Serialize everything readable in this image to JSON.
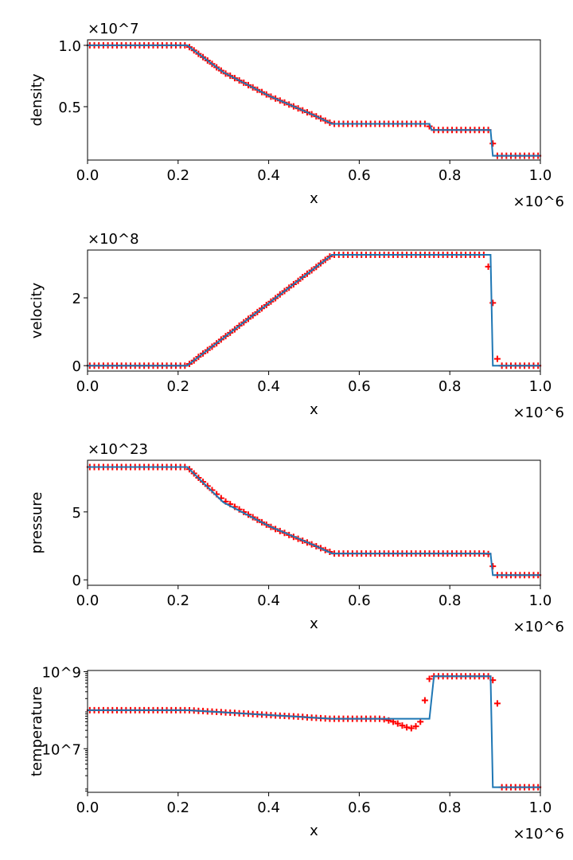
{
  "chart_data": [
    {
      "type": "line+scatter",
      "ylabel": "density",
      "xlabel": "x",
      "x_offset_label": "×10^6",
      "y_offset_label": "×10^7",
      "xlim": [
        0,
        1.0
      ],
      "ylim": [
        0.065,
        1.045
      ],
      "xticks": [
        "0.0",
        "0.2",
        "0.4",
        "0.6",
        "0.8",
        "1.0"
      ],
      "yticks": [
        0.5,
        1.0
      ],
      "ytick_labels": [
        "0.5",
        "1.0"
      ],
      "line": {
        "color": "#1f77b4",
        "x": [
          0,
          0.22,
          0.3,
          0.4,
          0.5,
          0.54,
          0.755,
          0.76,
          0.89,
          0.895,
          1.0
        ],
        "y": [
          1.0,
          1.0,
          0.78,
          0.59,
          0.43,
          0.36,
          0.36,
          0.31,
          0.31,
          0.1,
          0.1
        ]
      },
      "markers": {
        "color": "#ff0000",
        "symbol": "+",
        "y": [
          1.0,
          1.0,
          1.0,
          1.0,
          1.0,
          1.0,
          1.0,
          1.0,
          1.0,
          1.0,
          1.0,
          1.0,
          1.0,
          1.0,
          1.0,
          1.0,
          1.0,
          1.0,
          1.0,
          1.0,
          1.0,
          1.0,
          0.986,
          0.959,
          0.931,
          0.904,
          0.876,
          0.849,
          0.821,
          0.794,
          0.77,
          0.752,
          0.733,
          0.714,
          0.695,
          0.676,
          0.657,
          0.638,
          0.619,
          0.6,
          0.582,
          0.566,
          0.55,
          0.534,
          0.518,
          0.502,
          0.486,
          0.47,
          0.454,
          0.438,
          0.421,
          0.404,
          0.386,
          0.369,
          0.36,
          0.36,
          0.36,
          0.36,
          0.36,
          0.36,
          0.36,
          0.36,
          0.36,
          0.36,
          0.36,
          0.36,
          0.36,
          0.36,
          0.36,
          0.36,
          0.36,
          0.36,
          0.36,
          0.36,
          0.36,
          0.34,
          0.31,
          0.31,
          0.31,
          0.31,
          0.31,
          0.31,
          0.31,
          0.31,
          0.31,
          0.31,
          0.31,
          0.31,
          0.31,
          0.2,
          0.1,
          0.1,
          0.1,
          0.1,
          0.1,
          0.1,
          0.1,
          0.1,
          0.1,
          0.1
        ]
      }
    },
    {
      "type": "line+scatter",
      "ylabel": "velocity",
      "xlabel": "x",
      "x_offset_label": "×10^6",
      "y_offset_label": "×10^8",
      "xlim": [
        0,
        1.0
      ],
      "ylim": [
        -0.16,
        3.41
      ],
      "xticks": [
        "0.0",
        "0.2",
        "0.4",
        "0.6",
        "0.8",
        "1.0"
      ],
      "yticks": [
        0,
        2
      ],
      "ytick_labels": [
        "0",
        "2"
      ],
      "line": {
        "color": "#1f77b4",
        "x": [
          0,
          0.22,
          0.54,
          0.89,
          0.895,
          1.0
        ],
        "y": [
          0,
          0,
          3.27,
          3.27,
          0,
          0
        ]
      },
      "markers": {
        "color": "#ff0000",
        "symbol": "+",
        "y": [
          0,
          0,
          0,
          0,
          0,
          0,
          0,
          0,
          0,
          0,
          0,
          0,
          0,
          0,
          0,
          0,
          0,
          0,
          0,
          0,
          0,
          0,
          0.05,
          0.15,
          0.26,
          0.36,
          0.46,
          0.56,
          0.66,
          0.77,
          0.87,
          0.97,
          1.07,
          1.18,
          1.28,
          1.38,
          1.48,
          1.58,
          1.69,
          1.79,
          1.89,
          1.99,
          2.1,
          2.2,
          2.3,
          2.4,
          2.5,
          2.61,
          2.71,
          2.81,
          2.91,
          3.02,
          3.12,
          3.22,
          3.27,
          3.27,
          3.27,
          3.27,
          3.27,
          3.27,
          3.27,
          3.27,
          3.27,
          3.27,
          3.27,
          3.27,
          3.27,
          3.27,
          3.27,
          3.27,
          3.27,
          3.27,
          3.27,
          3.27,
          3.27,
          3.27,
          3.27,
          3.27,
          3.27,
          3.27,
          3.27,
          3.27,
          3.27,
          3.27,
          3.27,
          3.27,
          3.27,
          3.27,
          2.92,
          1.85,
          0.2,
          0,
          0,
          0,
          0,
          0,
          0,
          0,
          0,
          0
        ]
      }
    },
    {
      "type": "line+scatter",
      "ylabel": "pressure",
      "xlabel": "x",
      "x_offset_label": "×10^6",
      "y_offset_label": "×10^23",
      "xlim": [
        0,
        1.0
      ],
      "ylim": [
        -0.4,
        8.8
      ],
      "xticks": [
        "0.0",
        "0.2",
        "0.4",
        "0.6",
        "0.8",
        "1.0"
      ],
      "yticks": [
        0,
        5
      ],
      "ytick_labels": [
        "0",
        "5"
      ],
      "line": {
        "color": "#1f77b4",
        "x": [
          0,
          0.22,
          0.3,
          0.4,
          0.5,
          0.54,
          0.89,
          0.895,
          1.0
        ],
        "y": [
          8.3,
          8.3,
          5.7,
          3.97,
          2.55,
          1.94,
          1.94,
          0.35,
          0.35
        ]
      },
      "markers": {
        "color": "#ff0000",
        "symbol": "+",
        "y": [
          8.3,
          8.3,
          8.3,
          8.3,
          8.3,
          8.3,
          8.3,
          8.3,
          8.3,
          8.3,
          8.3,
          8.3,
          8.3,
          8.3,
          8.3,
          8.3,
          8.3,
          8.3,
          8.3,
          8.3,
          8.3,
          8.3,
          8.14,
          7.83,
          7.51,
          7.21,
          6.9,
          6.6,
          6.3,
          6.01,
          5.76,
          5.57,
          5.37,
          5.18,
          4.99,
          4.8,
          4.61,
          4.42,
          4.24,
          4.06,
          3.89,
          3.74,
          3.59,
          3.45,
          3.3,
          3.16,
          3.02,
          2.88,
          2.75,
          2.61,
          2.47,
          2.33,
          2.19,
          2.06,
          1.94,
          1.94,
          1.94,
          1.94,
          1.94,
          1.94,
          1.94,
          1.94,
          1.94,
          1.94,
          1.94,
          1.94,
          1.94,
          1.94,
          1.94,
          1.94,
          1.94,
          1.94,
          1.94,
          1.94,
          1.94,
          1.94,
          1.94,
          1.94,
          1.94,
          1.94,
          1.94,
          1.94,
          1.94,
          1.94,
          1.94,
          1.94,
          1.94,
          1.94,
          1.9,
          1.0,
          0.35,
          0.35,
          0.35,
          0.35,
          0.35,
          0.35,
          0.35,
          0.35,
          0.35,
          0.35
        ]
      }
    },
    {
      "type": "line+scatter",
      "ylabel": "temperature",
      "xlabel": "x",
      "x_offset_label": "×10^6",
      "yscale": "log",
      "xlim": [
        0,
        1.0
      ],
      "ylim": [
        740000,
        1070000000
      ],
      "xticks": [
        "0.0",
        "0.2",
        "0.4",
        "0.6",
        "0.8",
        "1.0"
      ],
      "yticks": [
        10000000,
        1000000000
      ],
      "ytick_labels": [
        "10^7",
        "10^9"
      ],
      "line": {
        "color": "#1f77b4",
        "x": [
          0,
          0.22,
          0.54,
          0.755,
          0.765,
          0.89,
          0.895,
          1.0
        ],
        "y": [
          100000000,
          100000000,
          60000000,
          60000000,
          760000000,
          760000000,
          1000000,
          1000000
        ]
      },
      "markers": {
        "color": "#ff0000",
        "symbol": "+",
        "y": [
          100000000.0,
          100000000.0,
          100000000.0,
          100000000.0,
          100000000.0,
          100000000.0,
          100000000.0,
          100000000.0,
          100000000.0,
          100000000.0,
          100000000.0,
          100000000.0,
          100000000.0,
          100000000.0,
          100000000.0,
          100000000.0,
          100000000.0,
          100000000.0,
          100000000.0,
          100000000.0,
          100000000.0,
          100000000.0,
          99000000.0,
          98000000.0,
          96000000.0,
          95000000.0,
          93000000.0,
          92000000.0,
          90000000.0,
          89000000.0,
          87000000.0,
          86000000.0,
          85000000.0,
          83000000.0,
          82000000.0,
          81000000.0,
          79000000.0,
          78000000.0,
          77000000.0,
          76000000.0,
          74000000.0,
          73000000.0,
          72000000.0,
          71000000.0,
          70000000.0,
          69000000.0,
          68000000.0,
          67000000.0,
          65000000.0,
          64000000.0,
          63000000.0,
          62000000.0,
          61000000.0,
          60000000.0,
          60000000.0,
          60000000.0,
          60000000.0,
          60000000.0,
          60000000.0,
          60000000.0,
          60000000.0,
          60000000.0,
          60000000.0,
          60000000.0,
          60000000.0,
          58000000.0,
          54000000.0,
          50000000.0,
          45000000.0,
          40000000.0,
          36000000.0,
          34000000.0,
          38000000.0,
          50000000.0,
          180000000.0,
          650000000.0,
          760000000.0,
          760000000.0,
          760000000.0,
          760000000.0,
          760000000.0,
          760000000.0,
          760000000.0,
          760000000.0,
          760000000.0,
          760000000.0,
          760000000.0,
          760000000.0,
          760000000.0,
          600000000.0,
          150000000.0,
          1000000.0,
          1000000.0,
          1000000.0,
          1000000.0,
          1000000.0,
          1000000.0,
          1000000.0,
          1000000.0,
          1000000.0
        ]
      }
    }
  ]
}
